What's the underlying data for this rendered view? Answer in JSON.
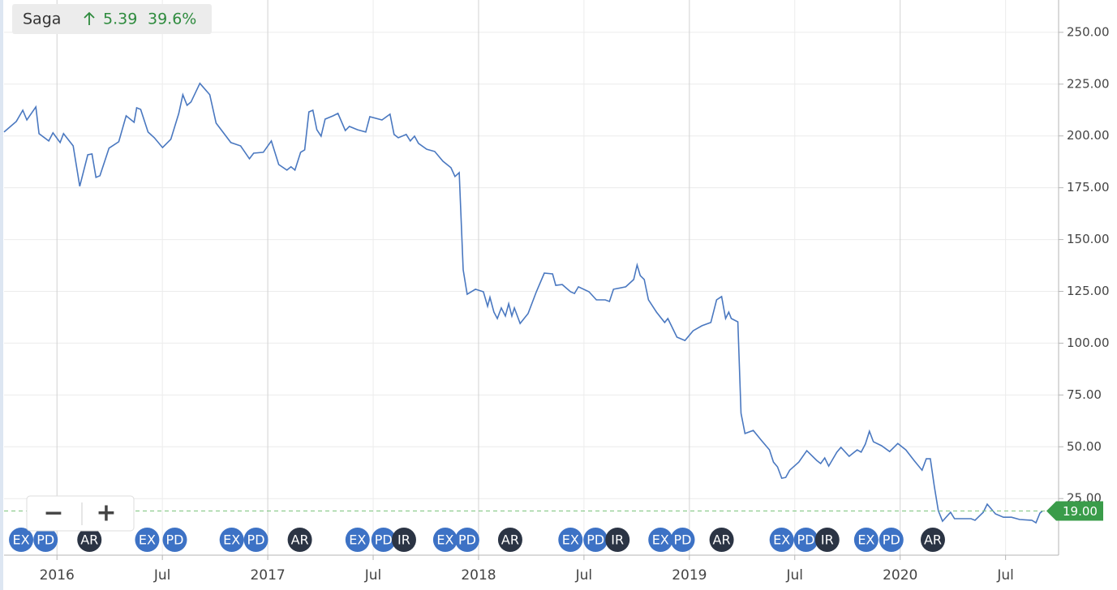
{
  "chart_data": {
    "type": "line",
    "change": 5.39,
    "change_pct": {
      "value": 39.6,
      "label": "39.6%"
    },
    "x": [
      2015.749,
      2015.807,
      2015.838,
      2015.857,
      2015.9,
      2015.915,
      2015.961,
      2015.981,
      2016.015,
      2016.031,
      2016.077,
      2016.108,
      2016.146,
      2016.166,
      2016.185,
      2016.204,
      2016.247,
      2016.293,
      2016.328,
      2016.366,
      2016.378,
      2016.397,
      2016.432,
      2016.462,
      2016.501,
      2016.54,
      2016.578,
      2016.597,
      2016.617,
      2016.636,
      2016.678,
      2016.725,
      2016.755,
      2016.825,
      2016.871,
      2016.913,
      2016.933,
      2016.979,
      2017.017,
      2017.052,
      2017.091,
      2017.11,
      2017.129,
      2017.156,
      2017.175,
      2017.195,
      2017.214,
      2017.233,
      2017.253,
      2017.272,
      2017.31,
      2017.333,
      2017.368,
      2017.387,
      2017.426,
      2017.465,
      2017.484,
      2017.542,
      2017.58,
      2017.599,
      2017.619,
      2017.657,
      2017.676,
      2017.696,
      2017.715,
      2017.754,
      2017.792,
      2017.831,
      2017.869,
      2017.888,
      2017.908,
      2017.927,
      2017.946,
      2017.985,
      2018.023,
      2018.043,
      2018.054,
      2018.073,
      2018.089,
      2018.108,
      2018.127,
      2018.143,
      2018.158,
      2018.17,
      2018.197,
      2018.235,
      2018.274,
      2018.312,
      2018.351,
      2018.366,
      2018.397,
      2018.436,
      2018.455,
      2018.474,
      2018.524,
      2018.559,
      2018.601,
      2018.621,
      2018.64,
      2018.698,
      2018.736,
      2018.752,
      2018.767,
      2018.786,
      2018.806,
      2018.844,
      2018.883,
      2018.898,
      2018.941,
      2018.979,
      2019.018,
      2019.06,
      2019.102,
      2019.129,
      2019.153,
      2019.172,
      2019.187,
      2019.199,
      2019.23,
      2019.245,
      2019.264,
      2019.303,
      2019.341,
      2019.38,
      2019.399,
      2019.418,
      2019.438,
      2019.457,
      2019.476,
      2019.519,
      2019.557,
      2019.604,
      2019.623,
      2019.642,
      2019.661,
      2019.7,
      2019.719,
      2019.758,
      2019.796,
      2019.815,
      2019.835,
      2019.854,
      2019.873,
      2019.912,
      2019.95,
      2019.989,
      2020.027,
      2020.066,
      2020.104,
      2020.124,
      2020.143,
      2020.162,
      2020.181,
      2020.201,
      2020.239,
      2020.258,
      2020.297,
      2020.336,
      2020.355,
      2020.394,
      2020.413,
      2020.452,
      2020.49,
      2020.528,
      2020.567,
      2020.625,
      2020.644,
      2020.663,
      2020.675
    ],
    "series": [
      {
        "name": "Saga",
        "color": "#4a78c0",
        "values": [
          201.9,
          207.0,
          212.4,
          207.7,
          214.0,
          201.1,
          197.6,
          201.5,
          196.8,
          201.1,
          195.2,
          175.7,
          190.9,
          191.3,
          180.0,
          180.8,
          194.1,
          197.2,
          209.7,
          206.6,
          213.6,
          212.8,
          201.9,
          199.1,
          194.4,
          198.4,
          210.9,
          219.9,
          214.8,
          216.4,
          225.4,
          219.9,
          206.2,
          196.8,
          195.2,
          189.0,
          191.7,
          192.1,
          197.6,
          186.2,
          183.5,
          185.1,
          183.5,
          192.1,
          193.3,
          211.6,
          212.4,
          203.0,
          199.9,
          208.1,
          209.7,
          210.9,
          202.6,
          204.6,
          203.0,
          201.9,
          209.3,
          207.7,
          210.5,
          200.7,
          199.1,
          200.7,
          197.6,
          199.9,
          196.4,
          193.6,
          192.5,
          187.8,
          184.7,
          180.4,
          182.3,
          135.4,
          123.6,
          126.0,
          124.8,
          117.8,
          122.1,
          115.0,
          111.9,
          117.0,
          113.1,
          119.0,
          113.1,
          117.0,
          109.5,
          114.3,
          124.8,
          133.8,
          133.4,
          127.9,
          128.3,
          124.8,
          124.0,
          127.2,
          124.8,
          120.9,
          120.9,
          120.1,
          126.0,
          127.2,
          130.7,
          137.7,
          132.6,
          130.7,
          120.9,
          115.0,
          110.0,
          111.9,
          102.9,
          101.3,
          106.0,
          108.4,
          110.0,
          120.9,
          122.5,
          111.9,
          115.0,
          111.9,
          110.3,
          66.2,
          56.4,
          57.9,
          53.2,
          48.5,
          42.6,
          40.3,
          34.8,
          35.2,
          38.7,
          42.6,
          48.1,
          43.4,
          41.9,
          44.6,
          40.7,
          47.4,
          49.7,
          45.4,
          48.5,
          47.4,
          51.3,
          57.5,
          52.4,
          50.5,
          47.7,
          51.6,
          48.5,
          43.4,
          38.7,
          44.2,
          44.2,
          30.9,
          19.2,
          14.1,
          18.4,
          15.3,
          15.3,
          15.3,
          14.5,
          18.4,
          22.3,
          17.6,
          16.0,
          16.0,
          14.9,
          14.5,
          13.3,
          18.0,
          19.0
        ]
      }
    ],
    "last_price": {
      "value": 19,
      "label": "19.00"
    },
    "xlim": [
      2015.749,
      2020.74
    ],
    "xticks": [
      {
        "value": 2016,
        "label": "2016"
      },
      {
        "value": 2016.5,
        "label": "Jul"
      },
      {
        "value": 2017,
        "label": "2017"
      },
      {
        "value": 2017.5,
        "label": "Jul"
      },
      {
        "value": 2018,
        "label": "2018"
      },
      {
        "value": 2018.5,
        "label": "Jul"
      },
      {
        "value": 2019,
        "label": "2019"
      },
      {
        "value": 2019.5,
        "label": "Jul"
      },
      {
        "value": 2020,
        "label": "2020"
      },
      {
        "value": 2020.5,
        "label": "Jul"
      }
    ],
    "ylim": [
      -2.3,
      265.6
    ],
    "yticks": [
      {
        "value": 25,
        "label": "25.00"
      },
      {
        "value": 50,
        "label": "50.00"
      },
      {
        "value": 75,
        "label": "75.00"
      },
      {
        "value": 100,
        "label": "100.00"
      },
      {
        "value": 125,
        "label": "125.00"
      },
      {
        "value": 150,
        "label": "150.00"
      },
      {
        "value": 175,
        "label": "175.00"
      },
      {
        "value": 200,
        "label": "200.00"
      },
      {
        "value": 225,
        "label": "225.00"
      },
      {
        "value": 250,
        "label": "250.00"
      }
    ],
    "grid": true,
    "events": [
      {
        "label": "EX",
        "x": 2015.83
      },
      {
        "label": "PD",
        "x": 2015.946
      },
      {
        "label": "AR",
        "x": 2016.154
      },
      {
        "label": "EX",
        "x": 2016.428
      },
      {
        "label": "PD",
        "x": 2016.559
      },
      {
        "label": "EX",
        "x": 2016.829
      },
      {
        "label": "PD",
        "x": 2016.944
      },
      {
        "label": "AR",
        "x": 2017.152
      },
      {
        "label": "EX",
        "x": 2017.426
      },
      {
        "label": "PD",
        "x": 2017.549
      },
      {
        "label": "IR",
        "x": 2017.646
      },
      {
        "label": "EX",
        "x": 2017.842
      },
      {
        "label": "PD",
        "x": 2017.946
      },
      {
        "label": "AR",
        "x": 2018.15
      },
      {
        "label": "EX",
        "x": 2018.436
      },
      {
        "label": "PD",
        "x": 2018.555
      },
      {
        "label": "IR",
        "x": 2018.659
      },
      {
        "label": "EX",
        "x": 2018.863
      },
      {
        "label": "PD",
        "x": 2018.968
      },
      {
        "label": "AR",
        "x": 2019.153
      },
      {
        "label": "EX",
        "x": 2019.438
      },
      {
        "label": "PD",
        "x": 2019.553
      },
      {
        "label": "IR",
        "x": 2019.654
      },
      {
        "label": "EX",
        "x": 2019.839
      },
      {
        "label": "PD",
        "x": 2019.958
      },
      {
        "label": "AR",
        "x": 2020.155
      }
    ],
    "zoom_controls": [
      "−",
      "+"
    ]
  }
}
